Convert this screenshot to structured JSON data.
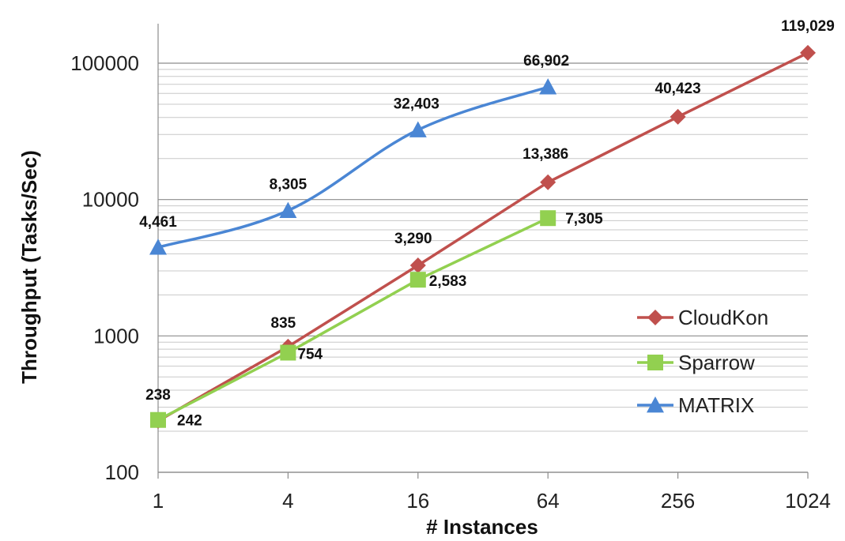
{
  "chart_data": {
    "type": "line",
    "y_scale": "log",
    "x_scale": "categorical",
    "categories": [
      "1",
      "4",
      "16",
      "64",
      "256",
      "1024"
    ],
    "xlabel": "# Instances",
    "ylabel": "Throughput (Tasks/Sec)",
    "ylim": [
      100,
      200000
    ],
    "y_ticks": [
      100,
      1000,
      10000,
      100000
    ],
    "y_tick_labels": [
      "100",
      "1000",
      "10000",
      "100000"
    ],
    "grid": "horizontal major and minor",
    "legend_position": "right",
    "series": [
      {
        "name": "CloudKon",
        "color": "#c0504d",
        "marker": "diamond",
        "values": [
          238,
          835,
          3290,
          13386,
          40423,
          119029
        ],
        "labels": [
          "238",
          "835",
          "3,290",
          "13,386",
          "40,423",
          "119,029"
        ]
      },
      {
        "name": "Sparrow",
        "color": "#92d050",
        "marker": "square",
        "values": [
          242,
          754,
          2583,
          7305,
          null,
          null
        ],
        "labels": [
          "242",
          "754",
          "2,583",
          "7,305",
          null,
          null
        ]
      },
      {
        "name": "MATRIX",
        "color": "#4a86d4",
        "marker": "triangle",
        "values": [
          4461,
          8305,
          32403,
          66902,
          null,
          null
        ],
        "labels": [
          "4,461",
          "8,305",
          "32,403",
          "66,902",
          null,
          null
        ]
      }
    ]
  }
}
